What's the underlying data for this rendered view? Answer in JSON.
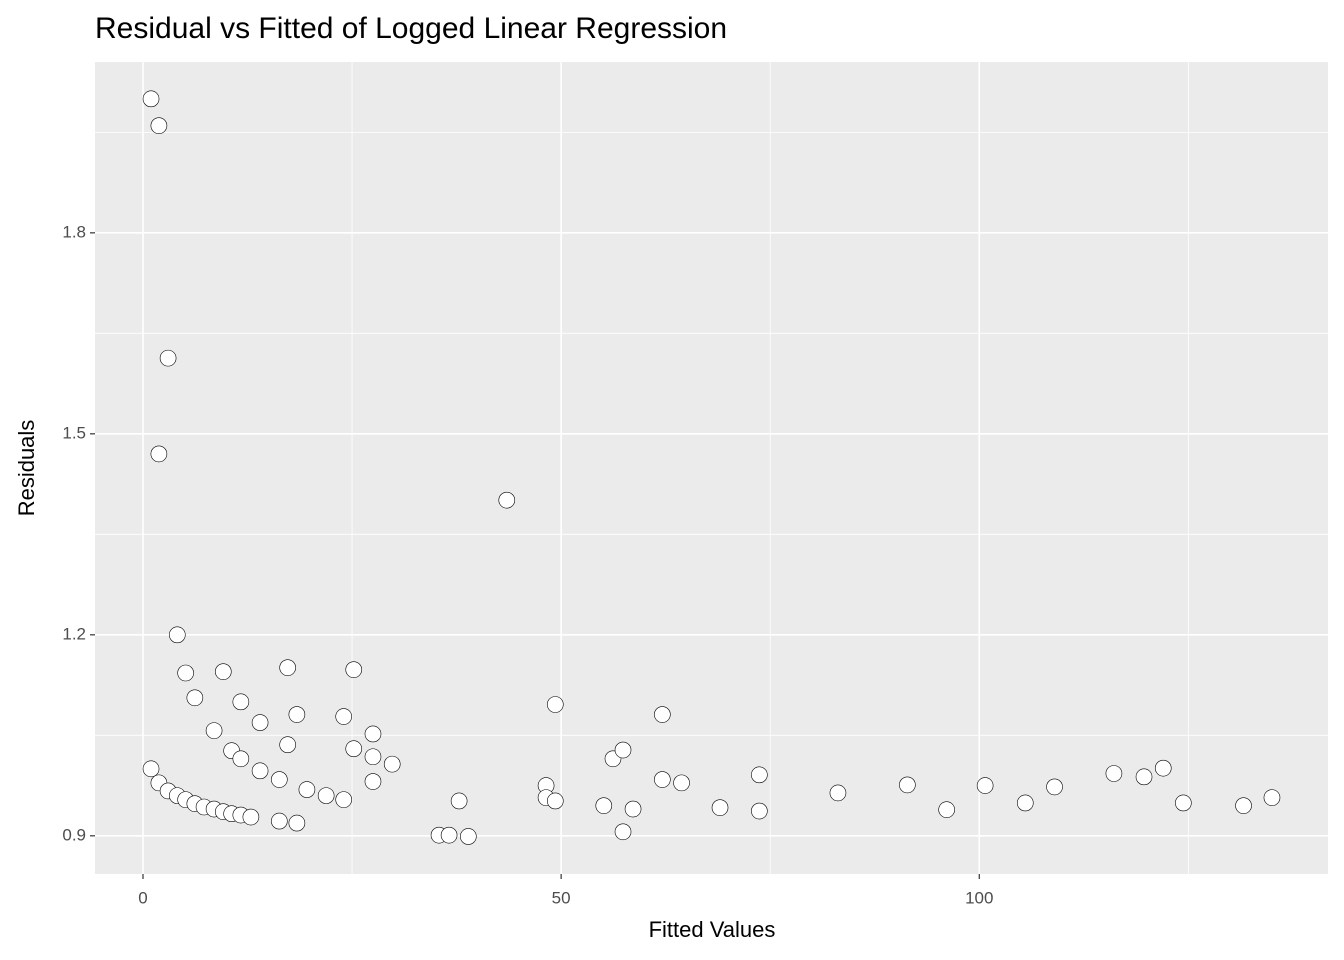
{
  "chart_data": {
    "type": "scatter",
    "title": "Residual vs Fitted of Logged Linear Regression",
    "x_label": "Fitted Values",
    "y_label": "Residuals",
    "xlim": [
      -5.74,
      141.7
    ],
    "ylim": [
      0.843,
      2.055
    ],
    "xticks": [
      0,
      50,
      100
    ],
    "yticks": [
      0.9,
      1.2,
      1.5,
      1.8
    ],
    "grid": true,
    "background": "#ebebeb",
    "point_fill": "#ffffff",
    "point_stroke": "#000000",
    "x": [
      0.96,
      1.9,
      3.0,
      1.9,
      4.1,
      5.1,
      6.2,
      8.5,
      9.6,
      10.6,
      11.7,
      11.7,
      14.0,
      14.0,
      16.3,
      17.3,
      17.3,
      18.4,
      16.3,
      18.4,
      19.6,
      21.9,
      24.0,
      24.0,
      25.2,
      25.2,
      27.5,
      27.5,
      27.5,
      29.8,
      0.96,
      1.9,
      3.0,
      4.1,
      5.1,
      6.2,
      7.3,
      8.5,
      9.6,
      10.6,
      11.7,
      12.9,
      35.4,
      36.6,
      37.8,
      38.9,
      43.5,
      48.2,
      48.2,
      49.3,
      49.3,
      55.1,
      56.2,
      57.4,
      57.4,
      58.6,
      62.1,
      62.1,
      64.4,
      69.0,
      73.7,
      73.7,
      83.1,
      91.4,
      96.1,
      100.7,
      105.5,
      109.0,
      116.1,
      119.7,
      122.0,
      124.4,
      131.6,
      135.0
    ],
    "values": [
      2.0,
      1.96,
      1.613,
      1.47,
      1.2,
      1.143,
      1.106,
      1.057,
      1.145,
      1.027,
      1.1,
      1.015,
      1.069,
      0.997,
      0.984,
      1.151,
      1.036,
      1.081,
      0.922,
      0.919,
      0.969,
      0.96,
      0.954,
      1.078,
      1.148,
      1.03,
      1.052,
      1.018,
      0.981,
      1.007,
      1.0,
      0.979,
      0.967,
      0.96,
      0.954,
      0.948,
      0.943,
      0.94,
      0.936,
      0.933,
      0.931,
      0.928,
      0.901,
      0.901,
      0.952,
      0.899,
      1.401,
      0.975,
      0.957,
      0.952,
      1.096,
      0.945,
      1.015,
      1.028,
      0.906,
      0.94,
      1.081,
      0.984,
      0.979,
      0.942,
      0.991,
      0.937,
      0.964,
      0.976,
      0.939,
      0.975,
      0.949,
      0.973,
      0.993,
      0.988,
      1.001,
      0.949,
      0.945,
      0.957
    ]
  }
}
